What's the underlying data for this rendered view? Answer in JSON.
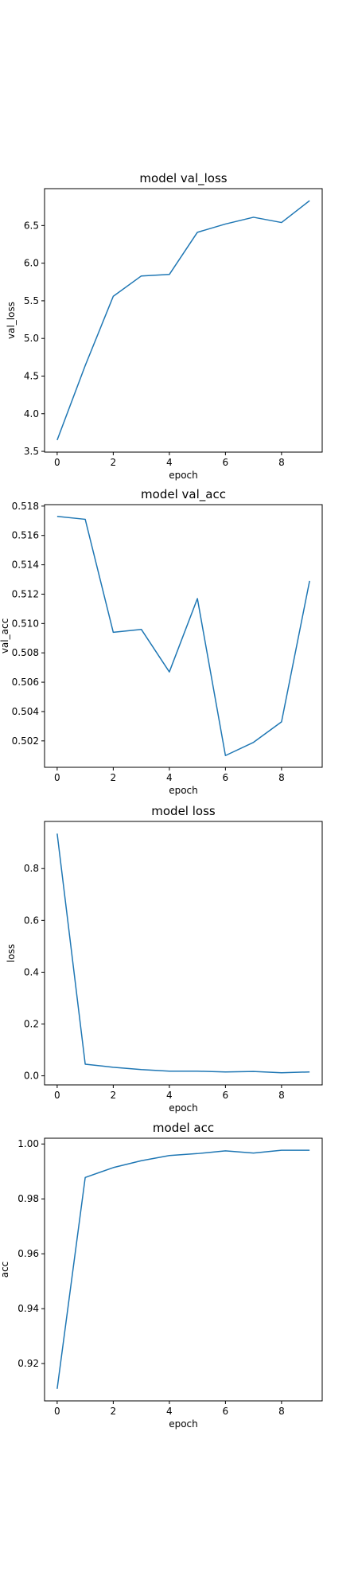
{
  "colors": {
    "line": "#1f77b4",
    "axes": "#000000",
    "background": "#ffffff"
  },
  "chart_data": [
    {
      "type": "line",
      "title": "model val_loss",
      "xlabel": "epoch",
      "ylabel": "val_loss",
      "x": [
        0,
        1,
        2,
        3,
        4,
        5,
        6,
        7,
        8,
        9
      ],
      "series": [
        {
          "values": [
            3.65,
            4.64,
            5.56,
            5.83,
            5.85,
            6.41,
            6.52,
            6.61,
            6.54,
            6.83
          ]
        }
      ],
      "xlim": [
        -0.45,
        9.45
      ],
      "ylim": [
        3.49,
        6.99
      ],
      "xticks": [
        0,
        2,
        4,
        6,
        8
      ],
      "xtick_labels": [
        "0",
        "2",
        "4",
        "6",
        "8"
      ],
      "yticks": [
        3.5,
        4.0,
        4.5,
        5.0,
        5.5,
        6.0,
        6.5
      ],
      "ytick_labels": [
        "3.5",
        "4.0",
        "4.5",
        "5.0",
        "5.5",
        "6.0",
        "6.5"
      ],
      "grid": false,
      "legend": "none"
    },
    {
      "type": "line",
      "title": "model val_acc",
      "xlabel": "epoch",
      "ylabel": "val_acc",
      "x": [
        0,
        1,
        2,
        3,
        4,
        5,
        6,
        7,
        8,
        9
      ],
      "series": [
        {
          "values": [
            0.5173,
            0.5171,
            0.5094,
            0.5096,
            0.5067,
            0.5117,
            0.501,
            0.5019,
            0.5033,
            0.5129
          ]
        }
      ],
      "xlim": [
        -0.45,
        9.45
      ],
      "ylim": [
        0.5002,
        0.5181
      ],
      "xticks": [
        0,
        2,
        4,
        6,
        8
      ],
      "xtick_labels": [
        "0",
        "2",
        "4",
        "6",
        "8"
      ],
      "yticks": [
        0.502,
        0.504,
        0.506,
        0.508,
        0.51,
        0.512,
        0.514,
        0.516,
        0.518
      ],
      "ytick_labels": [
        "0.502",
        "0.504",
        "0.506",
        "0.508",
        "0.510",
        "0.512",
        "0.514",
        "0.516",
        "0.518"
      ],
      "grid": false,
      "legend": "none"
    },
    {
      "type": "line",
      "title": "model loss",
      "xlabel": "epoch",
      "ylabel": "loss",
      "x": [
        0,
        1,
        2,
        3,
        4,
        5,
        6,
        7,
        8,
        9
      ],
      "series": [
        {
          "values": [
            0.935,
            0.045,
            0.033,
            0.024,
            0.018,
            0.018,
            0.015,
            0.017,
            0.012,
            0.015
          ]
        }
      ],
      "xlim": [
        -0.45,
        9.45
      ],
      "ylim": [
        -0.035,
        0.982
      ],
      "xticks": [
        0,
        2,
        4,
        6,
        8
      ],
      "xtick_labels": [
        "0",
        "2",
        "4",
        "6",
        "8"
      ],
      "yticks": [
        0.0,
        0.2,
        0.4,
        0.6,
        0.8
      ],
      "ytick_labels": [
        "0.0",
        "0.2",
        "0.4",
        "0.6",
        "0.8"
      ],
      "grid": false,
      "legend": "none"
    },
    {
      "type": "line",
      "title": "model acc",
      "xlabel": "epoch",
      "ylabel": "acc",
      "x": [
        0,
        1,
        2,
        3,
        4,
        5,
        6,
        7,
        8,
        9
      ],
      "series": [
        {
          "values": [
            0.9108,
            0.9878,
            0.9914,
            0.9939,
            0.9958,
            0.9965,
            0.9975,
            0.9967,
            0.9977,
            0.9977
          ]
        }
      ],
      "xlim": [
        -0.45,
        9.45
      ],
      "ylim": [
        0.9064,
        1.0021
      ],
      "xticks": [
        0,
        2,
        4,
        6,
        8
      ],
      "xtick_labels": [
        "0",
        "2",
        "4",
        "6",
        "8"
      ],
      "yticks": [
        0.92,
        0.94,
        0.96,
        0.98,
        1.0
      ],
      "ytick_labels": [
        "0.92",
        "0.94",
        "0.96",
        "0.98",
        "1.00"
      ],
      "grid": false,
      "legend": "none"
    }
  ]
}
